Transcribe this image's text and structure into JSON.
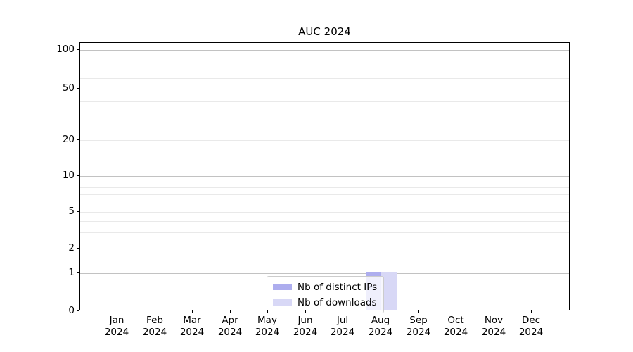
{
  "chart_data": {
    "type": "bar",
    "title": "AUC 2024",
    "categories": [
      {
        "month": "Jan",
        "year": "2024"
      },
      {
        "month": "Feb",
        "year": "2024"
      },
      {
        "month": "Mar",
        "year": "2024"
      },
      {
        "month": "Apr",
        "year": "2024"
      },
      {
        "month": "May",
        "year": "2024"
      },
      {
        "month": "Jun",
        "year": "2024"
      },
      {
        "month": "Jul",
        "year": "2024"
      },
      {
        "month": "Aug",
        "year": "2024"
      },
      {
        "month": "Sep",
        "year": "2024"
      },
      {
        "month": "Oct",
        "year": "2024"
      },
      {
        "month": "Nov",
        "year": "2024"
      },
      {
        "month": "Dec",
        "year": "2024"
      }
    ],
    "series": [
      {
        "name": "Nb of distinct IPs",
        "color": "#adadee",
        "values": [
          0,
          0,
          0,
          0,
          0,
          0,
          0,
          1,
          0,
          0,
          0,
          0
        ]
      },
      {
        "name": "Nb of downloads",
        "color": "#d8d8f6",
        "values": [
          0,
          0,
          0,
          0,
          0,
          0,
          0,
          1,
          0,
          0,
          0,
          0
        ]
      }
    ],
    "y_axis": {
      "scale": "log-like with 0 baseline",
      "tick_values": [
        100,
        50,
        20,
        10,
        5,
        2,
        1,
        0
      ],
      "major_grid_values": [
        100,
        10,
        1
      ],
      "minor_grid_values": [
        90,
        80,
        70,
        60,
        40,
        30,
        9,
        8,
        7,
        6,
        4,
        3
      ],
      "ylim": [
        0,
        110
      ]
    },
    "legend": {
      "entries": [
        "Nb of distinct IPs",
        "Nb of downloads"
      ],
      "position": "bottom-center-inside"
    },
    "colors": {
      "grid_major": "#c2c2c2",
      "grid_minor": "#e9e9e9",
      "spine": "#000000",
      "text": "#000000",
      "background": "#ffffff"
    },
    "grid": "on"
  }
}
